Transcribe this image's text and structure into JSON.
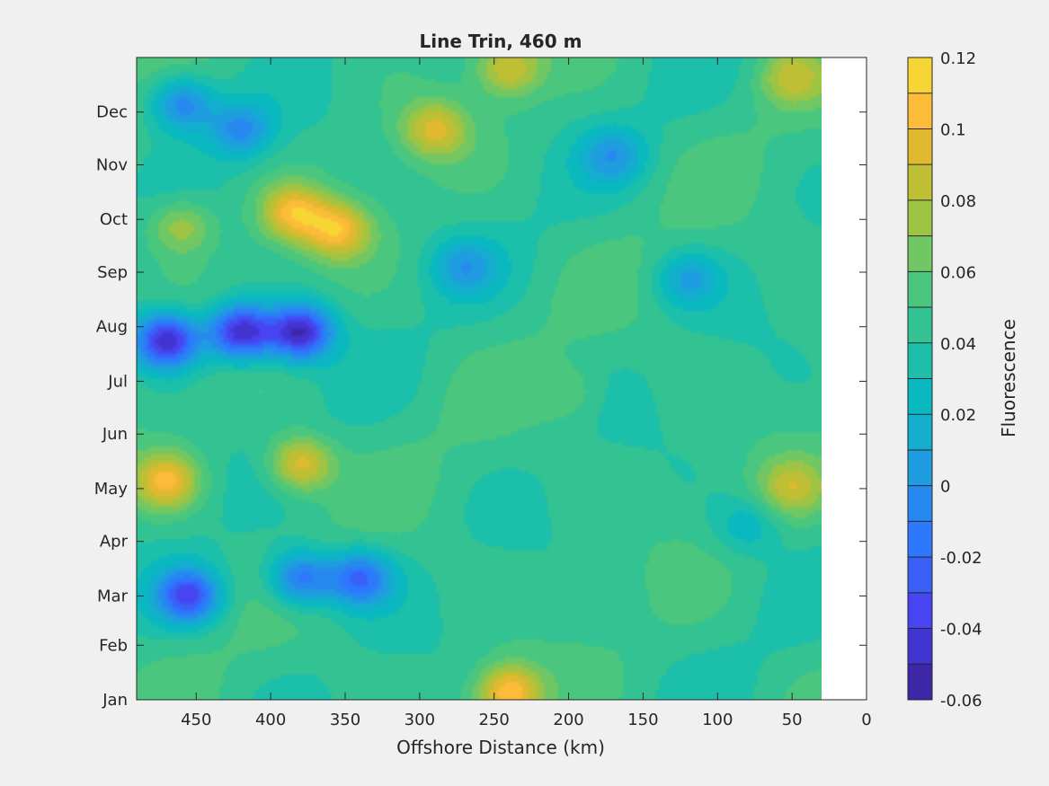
{
  "chart_data": {
    "type": "heatmap",
    "style": "filled-contour",
    "title": "Line Trin, 460 m",
    "xlabel": "Offshore Distance (km)",
    "ylabel": "",
    "x_direction": "reversed",
    "xlim": [
      0,
      490
    ],
    "x_ticks": [
      450,
      400,
      350,
      300,
      250,
      200,
      150,
      100,
      50,
      0
    ],
    "data_x_range": [
      30,
      490
    ],
    "y_categories": [
      "Jan",
      "Feb",
      "Mar",
      "Apr",
      "May",
      "Jun",
      "Jul",
      "Aug",
      "Sep",
      "Oct",
      "Nov",
      "Dec"
    ],
    "y_day_of_year": [
      1,
      32,
      60,
      91,
      121,
      152,
      182,
      213,
      244,
      274,
      305,
      335
    ],
    "ylim_day": [
      1,
      366
    ],
    "colorbar": {
      "label": "Fluorescence",
      "range": [
        -0.06,
        0.12
      ],
      "step": 0.01,
      "tick_values": [
        -0.06,
        -0.04,
        -0.02,
        0,
        0.02,
        0.04,
        0.06,
        0.08,
        0.1,
        0.12
      ],
      "tick_labels": [
        "-0.06",
        "-0.04",
        "-0.02",
        "0",
        "0.02",
        "0.04",
        "0.06",
        "0.08",
        "0.1",
        "0.12"
      ],
      "colors": [
        "#3e26a8",
        "#4234d1",
        "#4744f1",
        "#3a5ff7",
        "#2d78fd",
        "#2789ef",
        "#1f9de0",
        "#13adce",
        "#0ab9c0",
        "#1cbfaa",
        "#33c292",
        "#4ac67e",
        "#71c763",
        "#9dc445",
        "#bfbf35",
        "#e0b930",
        "#fdbb3a",
        "#f7d534",
        "#f3eb27"
      ]
    },
    "features": [
      {
        "x": 460,
        "day": 340,
        "value": -0.01
      },
      {
        "x": 420,
        "day": 325,
        "value": 0.0
      },
      {
        "x": 385,
        "day": 278,
        "value": 0.1
      },
      {
        "x": 355,
        "day": 268,
        "value": 0.1
      },
      {
        "x": 460,
        "day": 270,
        "value": 0.08
      },
      {
        "x": 470,
        "day": 205,
        "value": -0.05
      },
      {
        "x": 420,
        "day": 210,
        "value": -0.05
      },
      {
        "x": 380,
        "day": 210,
        "value": -0.05
      },
      {
        "x": 470,
        "day": 125,
        "value": 0.1
      },
      {
        "x": 380,
        "day": 135,
        "value": 0.1
      },
      {
        "x": 455,
        "day": 60,
        "value": -0.03
      },
      {
        "x": 380,
        "day": 70,
        "value": -0.02
      },
      {
        "x": 340,
        "day": 70,
        "value": -0.02
      },
      {
        "x": 290,
        "day": 325,
        "value": 0.09
      },
      {
        "x": 270,
        "day": 247,
        "value": 0.01
      },
      {
        "x": 240,
        "day": 5,
        "value": 0.11
      },
      {
        "x": 240,
        "day": 360,
        "value": 0.09
      },
      {
        "x": 170,
        "day": 310,
        "value": 0.01
      },
      {
        "x": 120,
        "day": 240,
        "value": 0.01
      },
      {
        "x": 50,
        "day": 122,
        "value": 0.08
      },
      {
        "x": 50,
        "day": 355,
        "value": 0.08
      },
      {
        "x": 80,
        "day": 100,
        "value": 0.02
      },
      {
        "x": 200,
        "day": 175,
        "value": 0.06
      }
    ]
  }
}
